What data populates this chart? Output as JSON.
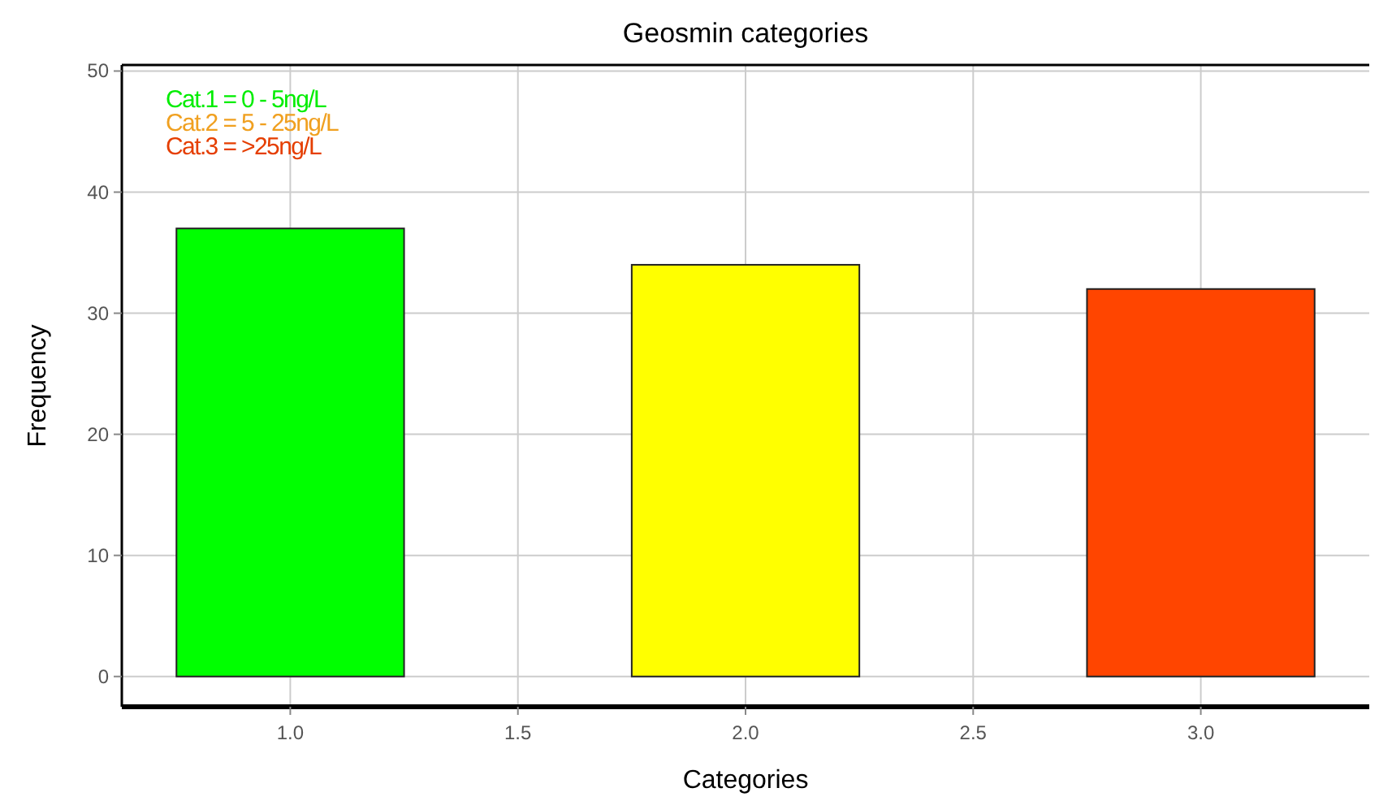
{
  "chart_data": {
    "type": "bar",
    "title": "Geosmin categories",
    "xlabel": "Categories",
    "ylabel": "Frequency",
    "x": [
      1,
      2,
      3
    ],
    "values": [
      37,
      34,
      32
    ],
    "colors": [
      "#00ff00",
      "#ffff00",
      "#ff4500"
    ],
    "xlim": [
      0.63,
      3.37
    ],
    "xticks": [
      {
        "value": 1,
        "label": "1.0"
      },
      {
        "value": 1.5,
        "label": "1.5"
      },
      {
        "value": 2,
        "label": "2.0"
      },
      {
        "value": 2.5,
        "label": "2.5"
      },
      {
        "value": 3,
        "label": "3.0"
      }
    ],
    "ylim": [
      -2.5,
      50.5
    ],
    "yticks": [
      0,
      10,
      20,
      30,
      40,
      50
    ],
    "grid": true,
    "annotations": [
      "Cat.1 = 0 - 5ng/L",
      "Cat.2 = 5 - 25ng/L",
      "Cat.3 = >25ng/L"
    ]
  }
}
